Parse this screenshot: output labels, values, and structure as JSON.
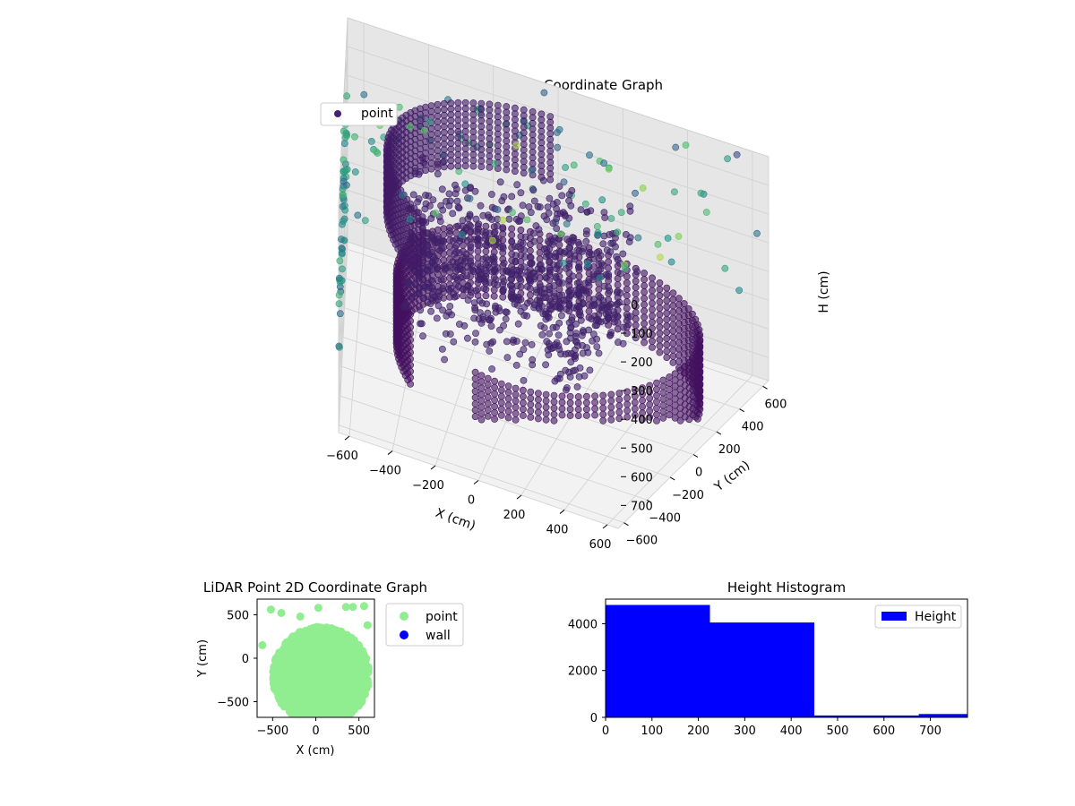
{
  "chart_data": [
    {
      "type": "scatter",
      "subtype": "3d",
      "title": "LiDAR Point 3D Coordinate Graph",
      "xlabel": "X (cm)",
      "ylabel": "Y (cm)",
      "zlabel": "H (cm)",
      "xticks": [
        "−600",
        "−400",
        "−200",
        "0",
        "200",
        "400",
        "600"
      ],
      "yticks": [
        "−600",
        "−400",
        "−200",
        "0",
        "200",
        "400",
        "600"
      ],
      "zticks": [
        "0",
        "100",
        "200",
        "300",
        "400",
        "500",
        "600",
        "700"
      ],
      "xlim": [
        -650,
        650
      ],
      "ylim": [
        -650,
        650
      ],
      "zlim": [
        0,
        780
      ],
      "z_axis_inverted": true,
      "colormap": "viridis",
      "legend": {
        "position": "upper-left",
        "entries": [
          {
            "label": "point",
            "color": "#45206e"
          }
        ]
      },
      "series": [
        {
          "name": "point",
          "ring_lower": {
            "radius": 600,
            "theta_start_deg": -95,
            "theta_end_deg": 220,
            "h_range": [
              470,
              720
            ]
          },
          "ring_upper": {
            "radius": 540,
            "theta_start_deg": 95,
            "theta_end_deg": 230,
            "h_range": [
              10,
              230
            ]
          },
          "inner_cluster": {
            "x_range": [
              -400,
              350
            ],
            "y_range": [
              -300,
              350
            ],
            "h_range": [
              150,
              600
            ]
          },
          "ceiling_points": {
            "h_range": [
              0,
              40
            ],
            "spread_cm": 650
          },
          "wall_points_left": {
            "x": -650,
            "h_range": [
              100,
              550
            ]
          },
          "wall_points_back": {
            "y": 650,
            "h_range": [
              150,
              500
            ]
          }
        }
      ],
      "grid": true
    },
    {
      "type": "scatter",
      "title": "LiDAR Point 2D Coordinate Graph",
      "xlabel": "X (cm)",
      "ylabel": "Y (cm)",
      "xticks": [
        "0",
        "−500",
        "500"
      ],
      "yticks": [
        "500",
        "0",
        "−500"
      ],
      "xlim": [
        -680,
        680
      ],
      "ylim": [
        -680,
        680
      ],
      "legend": {
        "position": "outside-right",
        "entries": [
          {
            "label": "point",
            "color": "#90ee90"
          },
          {
            "label": "wall",
            "color": "#0000ff"
          }
        ]
      },
      "series": [
        {
          "name": "point",
          "color": "#90ee90",
          "region": "dense disc, radius ≈ 560 cm, filling x −560..650, y −650..400, plus sparse points up to y 600"
        },
        {
          "name": "wall",
          "color": "#0000ff",
          "points": []
        }
      ]
    },
    {
      "type": "bar",
      "subtype": "histogram",
      "title": "Height Histogram",
      "xticks": [
        "0",
        "100",
        "200",
        "300",
        "400",
        "500",
        "600",
        "700"
      ],
      "yticks": [
        "0",
        "2000",
        "4000"
      ],
      "xlim": [
        0,
        780
      ],
      "ylim": [
        0,
        5050
      ],
      "legend": {
        "position": "top-right",
        "entries": [
          {
            "label": "Height",
            "color": "#0000ff"
          }
        ]
      },
      "bins": [
        {
          "from": 0,
          "to": 225,
          "count": 4800
        },
        {
          "from": 225,
          "to": 450,
          "count": 4050
        },
        {
          "from": 450,
          "to": 675,
          "count": 80
        },
        {
          "from": 675,
          "to": 780,
          "count": 140
        }
      ],
      "bar_color": "#0000ff"
    }
  ]
}
